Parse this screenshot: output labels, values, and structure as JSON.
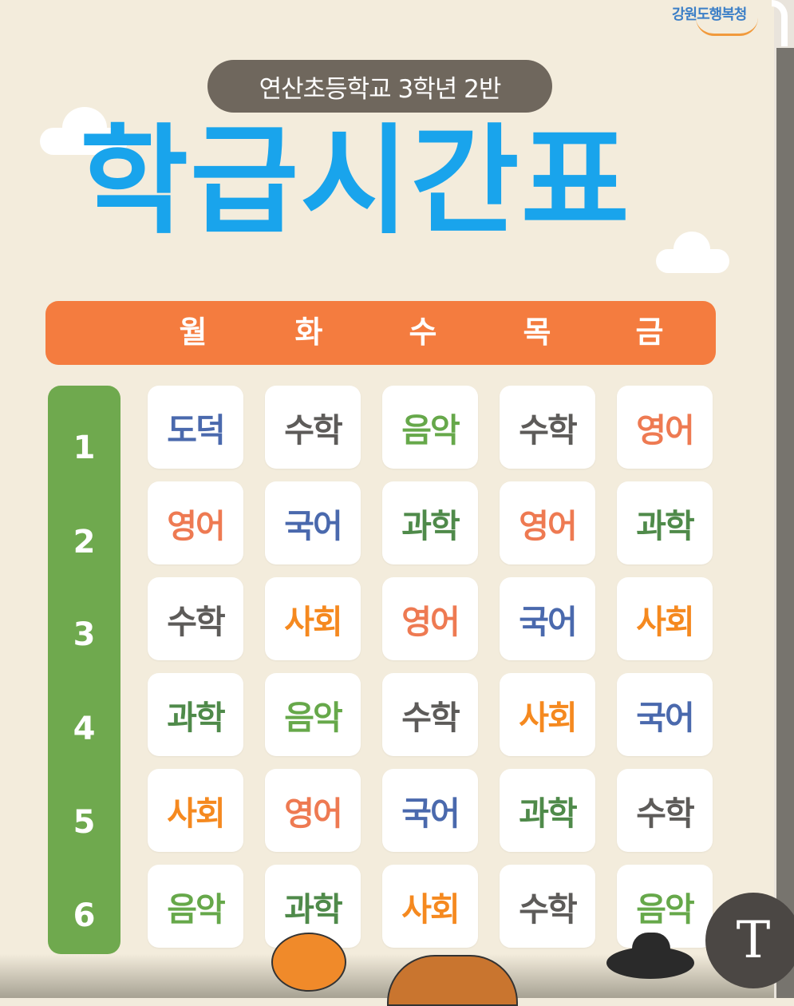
{
  "header": {
    "logo_text": "강원도행복청",
    "class_label": "연산초등학교 3학년 2반",
    "title": "학급시간표"
  },
  "days": [
    "월",
    "화",
    "수",
    "목",
    "금"
  ],
  "periods": [
    "1",
    "2",
    "3",
    "4",
    "5",
    "6"
  ],
  "timetable": [
    [
      "도덕",
      "수학",
      "음악",
      "수학",
      "영어"
    ],
    [
      "영어",
      "국어",
      "과학",
      "영어",
      "과학"
    ],
    [
      "수학",
      "사회",
      "영어",
      "국어",
      "사회"
    ],
    [
      "과학",
      "음악",
      "수학",
      "사회",
      "국어"
    ],
    [
      "사회",
      "영어",
      "국어",
      "과학",
      "수학"
    ],
    [
      "음악",
      "과학",
      "사회",
      "수학",
      "음악"
    ]
  ],
  "overlay": {
    "text_tool_label": "T"
  },
  "colors": {
    "title": "#19a4ec",
    "day_bar": "#f47c3f",
    "period_bar": "#6fa94e",
    "pill": "#6f675d"
  }
}
